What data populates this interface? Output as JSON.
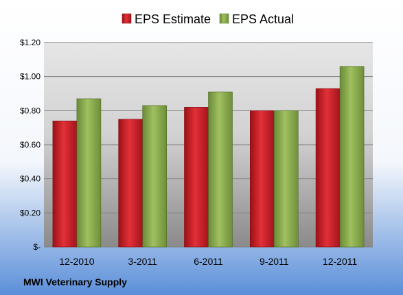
{
  "chart_data": {
    "type": "bar",
    "categories": [
      "12-2010",
      "3-2011",
      "6-2011",
      "9-2011",
      "12-2011"
    ],
    "series": [
      {
        "name": "EPS Estimate",
        "values": [
          0.74,
          0.75,
          0.82,
          0.8,
          0.93
        ],
        "color": "#c81e28"
      },
      {
        "name": "EPS Actual",
        "values": [
          0.87,
          0.83,
          0.91,
          0.8,
          1.06
        ],
        "color": "#8aac50"
      }
    ],
    "y_ticks": [
      {
        "value": 0,
        "label": "$-"
      },
      {
        "value": 0.2,
        "label": "$0.20"
      },
      {
        "value": 0.4,
        "label": "$0.40"
      },
      {
        "value": 0.6,
        "label": "$0.60"
      },
      {
        "value": 0.8,
        "label": "$0.80"
      },
      {
        "value": 1.0,
        "label": "$1.00"
      },
      {
        "value": 1.2,
        "label": "$1.20"
      }
    ],
    "ylim": [
      0,
      1.2
    ],
    "grid": true,
    "legend_position": "top-center",
    "footer": "MWI Veterinary Supply"
  },
  "colors": {
    "background_top": "#ffffff",
    "background_bottom": "#5b8fd9",
    "plot_top": "#e6e6e6",
    "plot_bottom": "#8a8a8a",
    "grid": "#7f7f7f"
  }
}
